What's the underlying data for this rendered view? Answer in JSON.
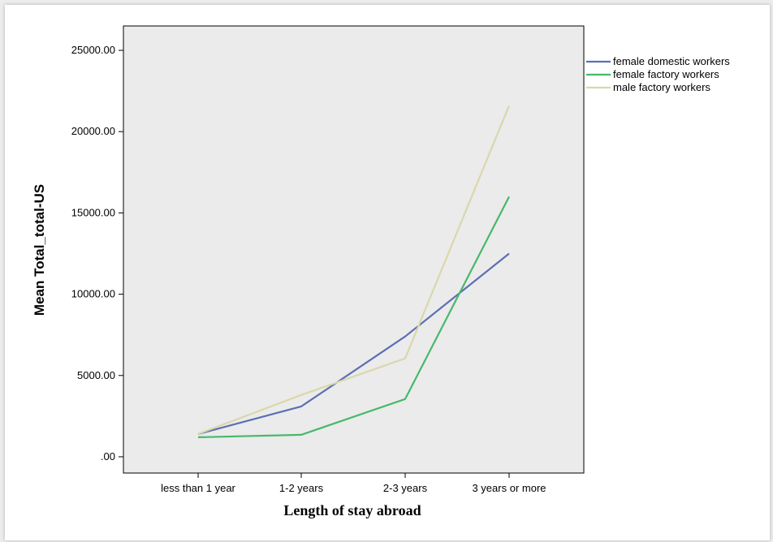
{
  "chart_data": {
    "type": "line",
    "xlabel": "Length of stay abroad",
    "ylabel": "Mean Total_total-US",
    "categories": [
      "less than 1 year",
      "1-2 years",
      "2-3 years",
      "3 years or more"
    ],
    "ylim": [
      -1000,
      26500
    ],
    "yticks": [
      0,
      5000,
      10000,
      15000,
      20000,
      25000
    ],
    "ytick_labels": [
      ".00",
      "5000.00",
      "10000.00",
      "15000.00",
      "20000.00",
      "25000.00"
    ],
    "grid": false,
    "legend_position": "right",
    "series": [
      {
        "name": "female domestic workers",
        "color": "#5b6fb5",
        "values": [
          1400,
          3100,
          7400,
          12500
        ]
      },
      {
        "name": "female factory workers",
        "color": "#47b86a",
        "values": [
          1200,
          1350,
          3550,
          16000
        ]
      },
      {
        "name": "male factory workers",
        "color": "#d9d7ac",
        "values": [
          1400,
          3800,
          6050,
          21600
        ]
      }
    ],
    "plot_background": "#ebebeb"
  }
}
